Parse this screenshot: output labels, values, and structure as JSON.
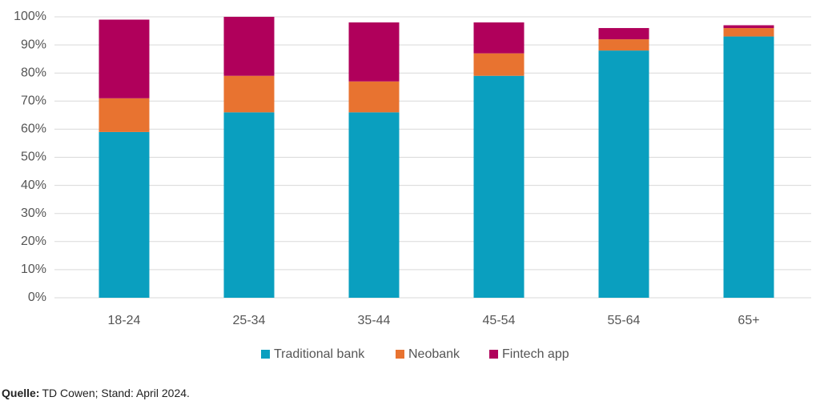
{
  "chart_data": {
    "type": "stacked_bar",
    "categories": [
      "18-24",
      "25-34",
      "35-44",
      "45-54",
      "55-64",
      "65+"
    ],
    "series": [
      {
        "name": "Traditional bank",
        "color": "#0a9fbf",
        "values": [
          59,
          66,
          66,
          79,
          88,
          93
        ]
      },
      {
        "name": "Neobank",
        "color": "#e87330",
        "values": [
          12,
          13,
          11,
          8,
          4,
          3
        ]
      },
      {
        "name": "Fintech app",
        "color": "#b0005b",
        "values": [
          28,
          21,
          21,
          11,
          4,
          1
        ]
      }
    ],
    "ylim": [
      0,
      100
    ],
    "yticks": [
      {
        "value": 0,
        "label": "0%"
      },
      {
        "value": 10,
        "label": "10%"
      },
      {
        "value": 20,
        "label": "20%"
      },
      {
        "value": 30,
        "label": "30%"
      },
      {
        "value": 40,
        "label": "40%"
      },
      {
        "value": 50,
        "label": "50%"
      },
      {
        "value": 60,
        "label": "60%"
      },
      {
        "value": 70,
        "label": "70%"
      },
      {
        "value": 80,
        "label": "80%"
      },
      {
        "value": 90,
        "label": "90%"
      },
      {
        "value": 100,
        "label": "100%"
      }
    ],
    "grid": true,
    "legend": "bottom",
    "source_label": "Quelle:",
    "source_text": "TD Cowen; Stand: April 2024."
  }
}
